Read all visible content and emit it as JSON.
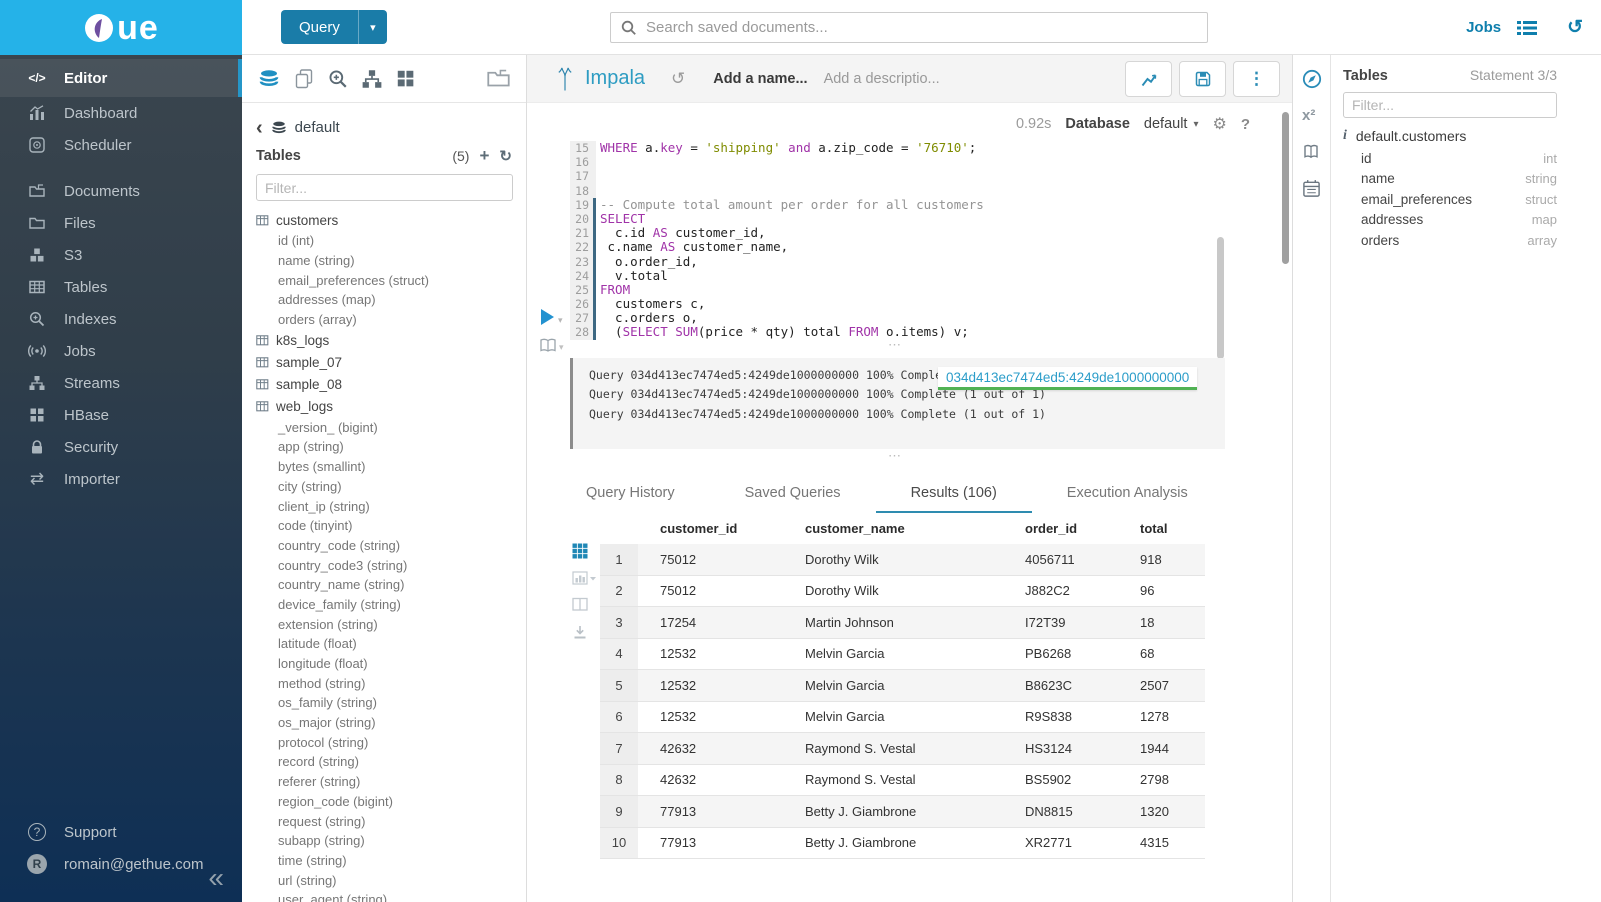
{
  "topbar": {
    "query": "Query",
    "search_placeholder": "Search saved documents...",
    "jobs": "Jobs"
  },
  "sidebar": {
    "items": [
      "Editor",
      "Dashboard",
      "Scheduler",
      "Documents",
      "Files",
      "S3",
      "Tables",
      "Indexes",
      "Jobs",
      "Streams",
      "HBase",
      "Security",
      "Importer"
    ],
    "support": "Support",
    "user": "romain@gethue.com",
    "user_initial": "R"
  },
  "assist": {
    "database": "default",
    "tables_label": "Tables",
    "count": "(5)",
    "filter_placeholder": "Filter...",
    "tables": [
      {
        "name": "customers",
        "columns": [
          "id (int)",
          "name (string)",
          "email_preferences (struct)",
          "addresses (map)",
          "orders (array)"
        ]
      },
      {
        "name": "k8s_logs",
        "columns": []
      },
      {
        "name": "sample_07",
        "columns": []
      },
      {
        "name": "sample_08",
        "columns": []
      },
      {
        "name": "web_logs",
        "columns": [
          "_version_ (bigint)",
          "app (string)",
          "bytes (smallint)",
          "city (string)",
          "client_ip (string)",
          "code (tinyint)",
          "country_code (string)",
          "country_code3 (string)",
          "country_name (string)",
          "device_family (string)",
          "extension (string)",
          "latitude (float)",
          "longitude (float)",
          "method (string)",
          "os_family (string)",
          "os_major (string)",
          "protocol (string)",
          "record (string)",
          "referer (string)",
          "region_code (bigint)",
          "request (string)",
          "subapp (string)",
          "time (string)",
          "url (string)",
          "user_agent (string)"
        ]
      }
    ]
  },
  "editor": {
    "engine": "Impala",
    "name_placeholder": "Add a name...",
    "description_placeholder": "Add a descriptio...",
    "duration": "0.92s",
    "database_label": "Database",
    "database_value": "default",
    "code_lines": [
      {
        "n": "15",
        "m": false,
        "tk": [
          [
            "k",
            "WHERE"
          ],
          [
            "t",
            " a."
          ],
          [
            "k",
            "key"
          ],
          [
            "t",
            " = "
          ],
          [
            "s",
            "'shipping'"
          ],
          [
            "t",
            " "
          ],
          [
            "k",
            "and"
          ],
          [
            "t",
            " a.zip_code = "
          ],
          [
            "s",
            "'76710'"
          ],
          [
            "t",
            ";"
          ]
        ]
      },
      {
        "n": "16",
        "m": false,
        "tk": []
      },
      {
        "n": "17",
        "m": false,
        "tk": []
      },
      {
        "n": "18",
        "m": false,
        "tk": []
      },
      {
        "n": "19",
        "m": true,
        "tk": [
          [
            "c",
            "-- Compute total amount per order for all customers"
          ]
        ]
      },
      {
        "n": "20",
        "m": true,
        "tk": [
          [
            "k",
            "SELECT"
          ]
        ]
      },
      {
        "n": "21",
        "m": true,
        "tk": [
          [
            "t",
            "  c.id "
          ],
          [
            "k",
            "AS"
          ],
          [
            "t",
            " customer_id,"
          ]
        ]
      },
      {
        "n": "22",
        "m": true,
        "tk": [
          [
            "t",
            " c.name "
          ],
          [
            "k",
            "AS"
          ],
          [
            "t",
            " customer_name,"
          ]
        ]
      },
      {
        "n": "23",
        "m": true,
        "tk": [
          [
            "t",
            "  o.order_id,"
          ]
        ]
      },
      {
        "n": "24",
        "m": true,
        "tk": [
          [
            "t",
            "  v.total"
          ]
        ]
      },
      {
        "n": "25",
        "m": true,
        "tk": [
          [
            "k",
            "FROM"
          ]
        ]
      },
      {
        "n": "26",
        "m": true,
        "tk": [
          [
            "t",
            "  customers c,"
          ]
        ]
      },
      {
        "n": "27",
        "m": true,
        "tk": [
          [
            "t",
            "  c.orders o,"
          ]
        ]
      },
      {
        "n": "28",
        "m": true,
        "tk": [
          [
            "t",
            "  ("
          ],
          [
            "k",
            "SELECT"
          ],
          [
            "t",
            " "
          ],
          [
            "k",
            "SUM"
          ],
          [
            "t",
            "(price * qty) total "
          ],
          [
            "k",
            "FROM"
          ],
          [
            "t",
            " o.items) v;"
          ]
        ]
      }
    ]
  },
  "log": {
    "lines": [
      "Query 034d413ec7474ed5:4249de1000000000 100% Complete (1 out of 1)",
      "Query 034d413ec7474ed5:4249de1000000000 100% Complete (1 out of 1)",
      "Query 034d413ec7474ed5:4249de1000000000 100% Complete (1 out of 1)"
    ],
    "badge": "034d413ec7474ed5:4249de1000000000"
  },
  "tabs": {
    "items": [
      "Query History",
      "Saved Queries",
      "Results (106)",
      "Execution Analysis"
    ],
    "active_index": 2
  },
  "results": {
    "columns": [
      "customer_id",
      "customer_name",
      "order_id",
      "total"
    ],
    "rows": [
      [
        "1",
        "75012",
        "Dorothy Wilk",
        "4056711",
        "918"
      ],
      [
        "2",
        "75012",
        "Dorothy Wilk",
        "J882C2",
        "96"
      ],
      [
        "3",
        "17254",
        "Martin Johnson",
        "I72T39",
        "18"
      ],
      [
        "4",
        "12532",
        "Melvin Garcia",
        "PB6268",
        "68"
      ],
      [
        "5",
        "12532",
        "Melvin Garcia",
        "B8623C",
        "2507"
      ],
      [
        "6",
        "12532",
        "Melvin Garcia",
        "R9S838",
        "1278"
      ],
      [
        "7",
        "42632",
        "Raymond S. Vestal",
        "HS3124",
        "1944"
      ],
      [
        "8",
        "42632",
        "Raymond S. Vestal",
        "BS5902",
        "2798"
      ],
      [
        "9",
        "77913",
        "Betty J. Giambrone",
        "DN8815",
        "1320"
      ],
      [
        "10",
        "77913",
        "Betty J. Giambrone",
        "XR2771",
        "4315"
      ]
    ]
  },
  "right_panel": {
    "title": "Tables",
    "statement": "Statement 3/3",
    "filter_placeholder": "Filter...",
    "table": "default.customers",
    "columns": [
      {
        "name": "id",
        "type": "int"
      },
      {
        "name": "name",
        "type": "string"
      },
      {
        "name": "email_preferences",
        "type": "struct"
      },
      {
        "name": "addresses",
        "type": "map"
      },
      {
        "name": "orders",
        "type": "array"
      }
    ]
  },
  "colors": {
    "brand_cyan": "#25b2e8",
    "primary_blue": "#1a7ca8",
    "link_blue": "#0f7fad",
    "keyword_purple": "#a033a8",
    "string_olive": "#7f8c00",
    "badge_green": "#51b254"
  }
}
